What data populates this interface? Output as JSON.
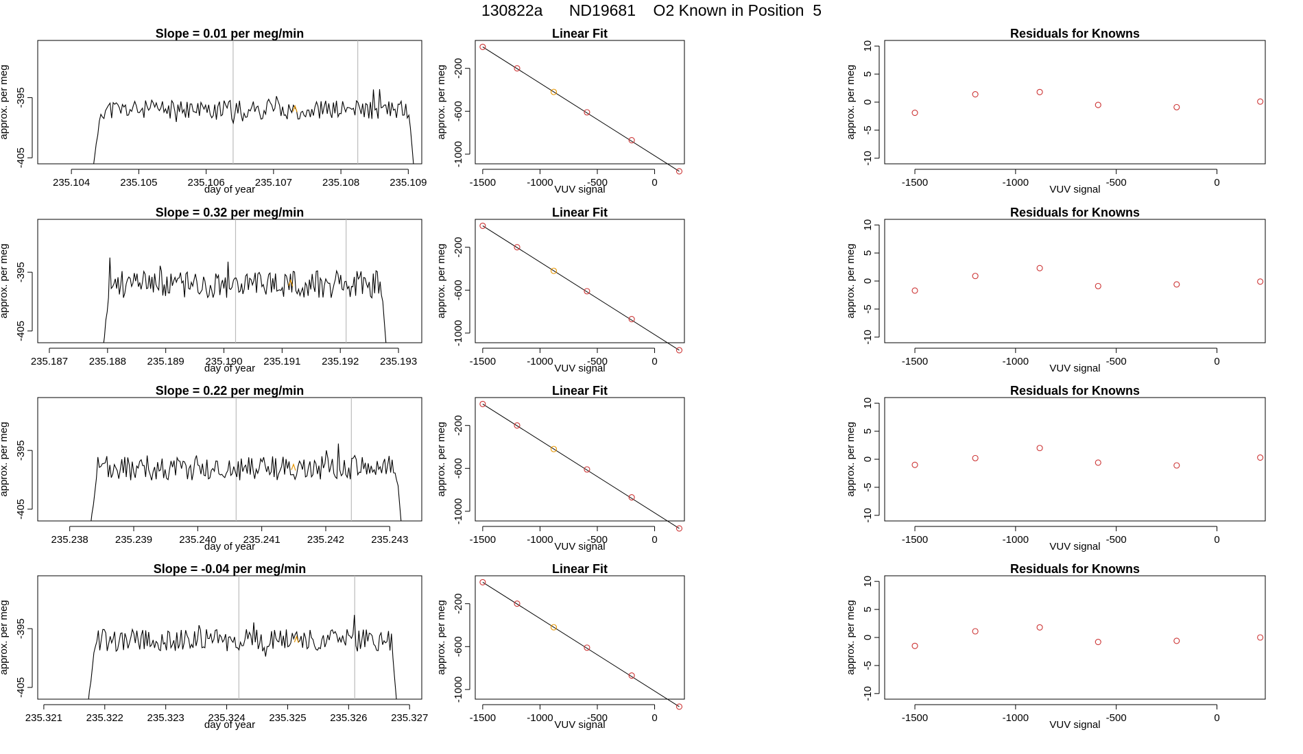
{
  "figure": {
    "title": "130822a      ND19681    O2 Known in Position  5",
    "colors": {
      "trace": "#000000",
      "marker": "#cc3333",
      "highlight": "#e69500",
      "vline": "#bbbbbb"
    }
  },
  "chart_data": [
    {
      "type": "line",
      "row": 0,
      "title": "Slope =  0.01  per meg/min",
      "xlabel": "day of year",
      "ylabel": "approx. per meg",
      "xlim": [
        235.1035,
        235.1092
      ],
      "ylim": [
        -406,
        -385.5
      ],
      "xticks": [
        235.104,
        235.105,
        235.106,
        235.107,
        235.108,
        235.109
      ],
      "xtick_labels": [
        "235.104",
        "235.105",
        "235.106",
        "235.107",
        "235.108",
        "235.109"
      ],
      "yticks": [
        -395,
        -405
      ],
      "ytick_labels": [
        "-395",
        "-405"
      ],
      "vlines": [
        235.1064,
        235.10825
      ],
      "start": 235.1043,
      "end": 235.1091,
      "baseline": -397,
      "amplitude": 1.6,
      "seed": 11
    },
    {
      "type": "scatter",
      "row": 0,
      "title": "Linear Fit",
      "xlabel": "VUV signal",
      "ylabel": "approx. per meg",
      "xlim": [
        -1565,
        260
      ],
      "ylim": [
        -1090,
        60
      ],
      "xticks": [
        -1500,
        -1000,
        -500,
        0
      ],
      "xtick_labels": [
        "-1500",
        "-1000",
        "-500",
        "0"
      ],
      "yticks": [
        -200,
        -600,
        -1000
      ],
      "ytick_labels": [
        "-200",
        "-600",
        "-1000"
      ],
      "x": [
        -1500,
        -1200,
        -880,
        -590,
        -200,
        215
      ],
      "y": [
        0,
        -200,
        -420,
        -610,
        -870,
        -1160
      ],
      "highlight_index": 2,
      "fit_line": [
        [
          -1500,
          0
        ],
        [
          215,
          -1160
        ]
      ]
    },
    {
      "type": "scatter",
      "row": 0,
      "title": "Residuals for Knowns",
      "xlabel": "VUV signal",
      "ylabel": "approx. per meg",
      "xlim": [
        -1650,
        240
      ],
      "ylim": [
        -11,
        11
      ],
      "xticks": [
        -1500,
        -1000,
        -500,
        0
      ],
      "xtick_labels": [
        "-1500",
        "-1000",
        "-500",
        "0"
      ],
      "yticks": [
        10,
        5,
        0,
        -5,
        -10
      ],
      "ytick_labels": [
        "10",
        "5",
        "0",
        "-5",
        "-10"
      ],
      "x": [
        -1500,
        -1200,
        -880,
        -590,
        -200,
        215
      ],
      "y": [
        -1.9,
        1.4,
        1.8,
        -0.5,
        -0.9,
        0.1
      ]
    },
    {
      "type": "line",
      "row": 1,
      "title": "Slope =  0.32  per meg/min",
      "xlabel": "day of year",
      "ylabel": "approx. per meg",
      "xlim": [
        235.1868,
        235.1934
      ],
      "ylim": [
        -407,
        -386
      ],
      "xticks": [
        235.187,
        235.188,
        235.189,
        235.19,
        235.191,
        235.192,
        235.193
      ],
      "xtick_labels": [
        "235.187",
        "235.188",
        "235.189",
        "235.190",
        "235.191",
        "235.192",
        "235.193"
      ],
      "yticks": [
        -395,
        -405
      ],
      "ytick_labels": [
        "-395",
        "-405"
      ],
      "vlines": [
        235.1902,
        235.1921
      ],
      "start": 235.1879,
      "end": 235.1928,
      "baseline": -397,
      "amplitude": 2.4,
      "seed": 23
    },
    {
      "type": "scatter",
      "row": 1,
      "title": "Linear Fit",
      "xlabel": "VUV signal",
      "ylabel": "approx. per meg",
      "xlim": [
        -1565,
        260
      ],
      "ylim": [
        -1090,
        60
      ],
      "xticks": [
        -1500,
        -1000,
        -500,
        0
      ],
      "xtick_labels": [
        "-1500",
        "-1000",
        "-500",
        "0"
      ],
      "yticks": [
        -200,
        -600,
        -1000
      ],
      "ytick_labels": [
        "-200",
        "-600",
        "-1000"
      ],
      "x": [
        -1500,
        -1200,
        -880,
        -590,
        -200,
        215
      ],
      "y": [
        0,
        -200,
        -420,
        -610,
        -870,
        -1160
      ],
      "highlight_index": 2,
      "fit_line": [
        [
          -1500,
          0
        ],
        [
          215,
          -1160
        ]
      ]
    },
    {
      "type": "scatter",
      "row": 1,
      "title": "Residuals for Knowns",
      "xlabel": "VUV signal",
      "ylabel": "approx. per meg",
      "xlim": [
        -1650,
        240
      ],
      "ylim": [
        -11,
        11
      ],
      "xticks": [
        -1500,
        -1000,
        -500,
        0
      ],
      "xtick_labels": [
        "-1500",
        "-1000",
        "-500",
        "0"
      ],
      "yticks": [
        10,
        5,
        0,
        -5,
        -10
      ],
      "ytick_labels": [
        "10",
        "5",
        "0",
        "-5",
        "-10"
      ],
      "x": [
        -1500,
        -1200,
        -880,
        -590,
        -200,
        215
      ],
      "y": [
        -1.7,
        0.9,
        2.3,
        -0.9,
        -0.6,
        -0.1
      ]
    },
    {
      "type": "line",
      "row": 2,
      "title": "Slope =  0.22  per meg/min",
      "xlabel": "day of year",
      "ylabel": "approx. per meg",
      "xlim": [
        235.2375,
        235.2435
      ],
      "ylim": [
        -407,
        -386
      ],
      "xticks": [
        235.238,
        235.239,
        235.24,
        235.241,
        235.242,
        235.243
      ],
      "xtick_labels": [
        "235.238",
        "235.239",
        "235.240",
        "235.241",
        "235.242",
        "235.243"
      ],
      "yticks": [
        -395,
        -405
      ],
      "ytick_labels": [
        "-395",
        "-405"
      ],
      "vlines": [
        235.2406,
        235.2424
      ],
      "start": 235.2383,
      "end": 235.2432,
      "baseline": -398,
      "amplitude": 2.2,
      "seed": 37
    },
    {
      "type": "scatter",
      "row": 2,
      "title": "Linear Fit",
      "xlabel": "VUV signal",
      "ylabel": "approx. per meg",
      "xlim": [
        -1565,
        260
      ],
      "ylim": [
        -1090,
        60
      ],
      "xticks": [
        -1500,
        -1000,
        -500,
        0
      ],
      "xtick_labels": [
        "-1500",
        "-1000",
        "-500",
        "0"
      ],
      "yticks": [
        -200,
        -600,
        -1000
      ],
      "ytick_labels": [
        "-200",
        "-600",
        "-1000"
      ],
      "x": [
        -1500,
        -1200,
        -880,
        -590,
        -200,
        215
      ],
      "y": [
        0,
        -200,
        -420,
        -610,
        -870,
        -1160
      ],
      "highlight_index": 2,
      "fit_line": [
        [
          -1500,
          0
        ],
        [
          215,
          -1160
        ]
      ]
    },
    {
      "type": "scatter",
      "row": 2,
      "title": "Residuals for Knowns",
      "xlabel": "VUV signal",
      "ylabel": "approx. per meg",
      "xlim": [
        -1650,
        240
      ],
      "ylim": [
        -11,
        11
      ],
      "xticks": [
        -1500,
        -1000,
        -500,
        0
      ],
      "xtick_labels": [
        "-1500",
        "-1000",
        "-500",
        "0"
      ],
      "yticks": [
        10,
        5,
        0,
        -5,
        -10
      ],
      "ytick_labels": [
        "10",
        "5",
        "0",
        "-5",
        "-10"
      ],
      "x": [
        -1500,
        -1200,
        -880,
        -590,
        -200,
        215
      ],
      "y": [
        -1.0,
        0.2,
        2.0,
        -0.6,
        -1.1,
        0.3
      ]
    },
    {
      "type": "line",
      "row": 3,
      "title": "Slope =  -0.04  per meg/min",
      "xlabel": "day of year",
      "ylabel": "approx. per meg",
      "xlim": [
        235.3209,
        235.3272
      ],
      "ylim": [
        -407,
        -386
      ],
      "xticks": [
        235.321,
        235.322,
        235.323,
        235.324,
        235.325,
        235.326,
        235.327
      ],
      "xtick_labels": [
        "235.321",
        "235.322",
        "235.323",
        "235.324",
        "235.325",
        "235.326",
        "235.327"
      ],
      "yticks": [
        -395,
        -405
      ],
      "ytick_labels": [
        "-395",
        "-405"
      ],
      "vlines": [
        235.3242,
        235.3261
      ],
      "start": 235.3217,
      "end": 235.3268,
      "baseline": -397,
      "amplitude": 1.9,
      "seed": 53
    },
    {
      "type": "scatter",
      "row": 3,
      "title": "Linear Fit",
      "xlabel": "VUV signal",
      "ylabel": "approx. per meg",
      "xlim": [
        -1565,
        260
      ],
      "ylim": [
        -1090,
        60
      ],
      "xticks": [
        -1500,
        -1000,
        -500,
        0
      ],
      "xtick_labels": [
        "-1500",
        "-1000",
        "-500",
        "0"
      ],
      "yticks": [
        -200,
        -600,
        -1000
      ],
      "ytick_labels": [
        "-200",
        "-600",
        "-1000"
      ],
      "x": [
        -1500,
        -1200,
        -880,
        -590,
        -200,
        215
      ],
      "y": [
        0,
        -200,
        -420,
        -610,
        -870,
        -1160
      ],
      "highlight_index": 2,
      "fit_line": [
        [
          -1500,
          0
        ],
        [
          215,
          -1160
        ]
      ]
    },
    {
      "type": "scatter",
      "row": 3,
      "title": "Residuals for Knowns",
      "xlabel": "VUV signal",
      "ylabel": "approx. per meg",
      "xlim": [
        -1650,
        240
      ],
      "ylim": [
        -11,
        11
      ],
      "xticks": [
        -1500,
        -1000,
        -500,
        0
      ],
      "xtick_labels": [
        "-1500",
        "-1000",
        "-500",
        "0"
      ],
      "yticks": [
        10,
        5,
        0,
        -5,
        -10
      ],
      "ytick_labels": [
        "10",
        "5",
        "0",
        "-5",
        "-10"
      ],
      "x": [
        -1500,
        -1200,
        -880,
        -590,
        -200,
        215
      ],
      "y": [
        -1.5,
        1.1,
        1.8,
        -0.8,
        -0.6,
        0.0
      ]
    }
  ]
}
